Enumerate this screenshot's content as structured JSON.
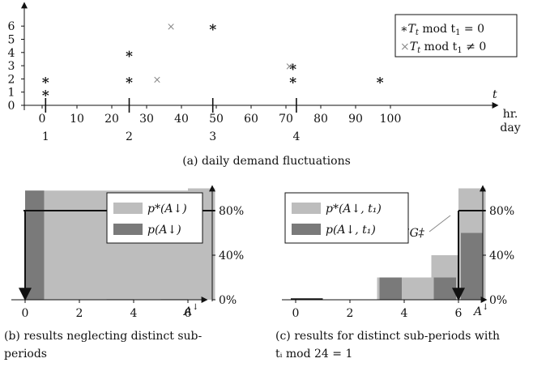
{
  "charts": {
    "a": {
      "caption": "(a) daily demand fluctuations",
      "x_axis_label": "t",
      "x_unit_labels": [
        "hr.",
        "day"
      ],
      "x_ticks": [
        "0",
        "10",
        "20",
        "30",
        "40",
        "50",
        "60",
        "70",
        "80",
        "90",
        "100"
      ],
      "day_ticks": [
        "1",
        "2",
        "3",
        "4"
      ],
      "y_ticks": [
        "0",
        "1",
        "2",
        "3",
        "4",
        "5",
        "6"
      ],
      "legend": {
        "entry1": {
          "marker": "∗",
          "T": "T",
          "sub": "t",
          "rest": "  mod t",
          "sub2": "1",
          "tail": " = 0"
        },
        "entry2": {
          "marker": "×",
          "T": "T",
          "sub": "t",
          "rest": "  mod t",
          "sub2": "1",
          "tail": " ≠ 0"
        }
      }
    },
    "b": {
      "caption_line1": "(b)  results  neglecting  distinct  sub-",
      "caption_line2": "periods",
      "x_ticks": [
        "0",
        "2",
        "4",
        "6"
      ],
      "x_label": "A",
      "y_ticks": [
        "0%",
        "40%",
        "80%"
      ],
      "legend": {
        "entry1": "p*(A↓)",
        "entry2": "p(A↓)"
      }
    },
    "c": {
      "caption_line1": "(c) results for distinct sub-periods with",
      "caption_line2": "tᵢ mod 24 = 1",
      "x_ticks": [
        "0",
        "2",
        "4",
        "6"
      ],
      "x_label": "A",
      "y_ticks": [
        "0%",
        "40%",
        "80%"
      ],
      "annotation": "SG‡",
      "legend": {
        "entry1": "p*(A↓, t₁)",
        "entry2": "p(A↓, t₁)"
      }
    }
  },
  "colors": {
    "light_bar": "#bdbdbd",
    "dark_bar": "#7a7a7a",
    "axis": "#111111"
  },
  "chart_data": [
    {
      "type": "scatter",
      "title": "(a) daily demand fluctuations",
      "xlabel": "t",
      "xlim": [
        -5,
        105
      ],
      "ylim": [
        0,
        6.5
      ],
      "series": [
        {
          "name": "Tt mod t1 = 0",
          "marker": "star",
          "points": [
            [
              1,
              1
            ],
            [
              1,
              2
            ],
            [
              25,
              2
            ],
            [
              25,
              4
            ],
            [
              49,
              6
            ],
            [
              72,
              2
            ],
            [
              72,
              3
            ],
            [
              97,
              2
            ]
          ]
        },
        {
          "name": "Tt mod t1 ≠ 0",
          "marker": "cross",
          "points": [
            [
              33,
              2
            ],
            [
              37,
              6
            ],
            [
              71,
              3
            ]
          ]
        }
      ]
    },
    {
      "type": "bar",
      "title": "(b) results neglecting distinct sub-periods",
      "xlabel": "A",
      "xlim": [
        -0.5,
        7
      ],
      "ylim": [
        0,
        100
      ],
      "yticks": [
        0,
        40,
        80
      ],
      "bin_edges": [
        0,
        0.7,
        1,
        2,
        3,
        4,
        5,
        6,
        7
      ],
      "series": [
        {
          "name": "p*(A↓)",
          "values": [
            98,
            98,
            98,
            98,
            98,
            98,
            98,
            100
          ]
        },
        {
          "name": "p(A↓)",
          "values": [
            98,
            0,
            0,
            0,
            0.5,
            0,
            0.5,
            0
          ]
        }
      ],
      "threshold": {
        "y": 80,
        "x": 0
      }
    },
    {
      "type": "bar",
      "title": "(c) results for distinct sub-periods with ti mod 24 = 1",
      "xlabel": "A",
      "xlim": [
        -0.5,
        7
      ],
      "ylim": [
        0,
        100
      ],
      "yticks": [
        0,
        40,
        80
      ],
      "bin_edges": [
        3,
        4,
        5,
        6,
        7
      ],
      "series": [
        {
          "name": "p*(A↓, t1)",
          "values": [
            20,
            20,
            40,
            100
          ]
        },
        {
          "name": "p(A↓, t1)",
          "values": [
            20,
            0,
            20,
            60
          ]
        }
      ],
      "threshold": {
        "y": 80,
        "x": 6
      }
    }
  ]
}
